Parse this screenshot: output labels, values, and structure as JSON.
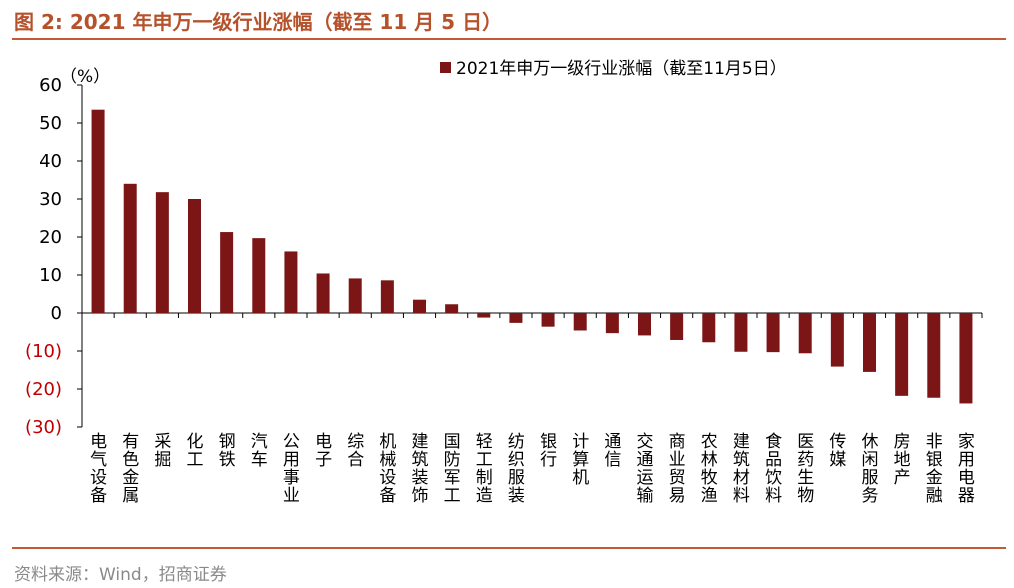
{
  "header": {
    "title": "图 2:  2021 年申万一级行业涨幅（截至 11 月 5 日）"
  },
  "footer": {
    "source": "资料来源：Wind，招商证券"
  },
  "colors": {
    "bar": "#7b1516",
    "accent": "#c45a35",
    "negative_tick": "#c00000"
  },
  "chart_data": {
    "type": "bar",
    "title": "",
    "unit_label": "（%）",
    "legend": [
      "2021年申万一级行业涨幅（截至11月5日）"
    ],
    "legend_position": "top-right",
    "ylim": [
      -30,
      60
    ],
    "yticks": [
      60,
      50,
      40,
      30,
      20,
      10,
      0,
      -10,
      -20,
      -30
    ],
    "ytick_labels": [
      "60",
      "50",
      "40",
      "30",
      "20",
      "10",
      "0",
      "(10)",
      "(20)",
      "(30)"
    ],
    "categories": [
      "电气设备",
      "有色金属",
      "采掘",
      "化工",
      "钢铁",
      "汽车",
      "公用事业",
      "电子",
      "综合",
      "机械设备",
      "建筑装饰",
      "国防军工",
      "轻工制造",
      "纺织服装",
      "银行",
      "计算机",
      "通信",
      "交通运输",
      "商业贸易",
      "农林牧渔",
      "建筑材料",
      "食品饮料",
      "医药生物",
      "传媒",
      "休闲服务",
      "房地产",
      "非银金融",
      "家用电器"
    ],
    "series": [
      {
        "name": "2021年申万一级行业涨幅（截至11月5日）",
        "values": [
          53.5,
          34.0,
          31.8,
          30.0,
          21.3,
          19.7,
          16.2,
          10.4,
          9.1,
          8.6,
          3.5,
          2.3,
          -1.2,
          -2.6,
          -3.6,
          -4.6,
          -5.3,
          -5.9,
          -7.1,
          -7.7,
          -10.2,
          -10.3,
          -10.6,
          -14.1,
          -15.5,
          -21.8,
          -22.3,
          -23.8
        ]
      }
    ]
  }
}
